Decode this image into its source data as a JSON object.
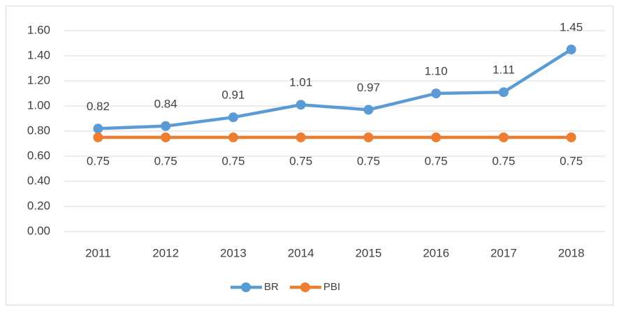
{
  "chart_data": {
    "type": "line",
    "categories": [
      "2011",
      "2012",
      "2013",
      "2014",
      "2015",
      "2016",
      "2017",
      "2018"
    ],
    "series": [
      {
        "name": "BR",
        "color": "#5b9bd5",
        "values": [
          0.82,
          0.84,
          0.91,
          1.01,
          0.97,
          1.1,
          1.11,
          1.45
        ],
        "value_labels": [
          "0.82",
          "0.84",
          "0.91",
          "1.01",
          "0.97",
          "1.10",
          "1.11",
          "1.45"
        ]
      },
      {
        "name": "PBI",
        "color": "#ed7d31",
        "values": [
          0.75,
          0.75,
          0.75,
          0.75,
          0.75,
          0.75,
          0.75,
          0.75
        ],
        "value_labels": [
          "0.75",
          "0.75",
          "0.75",
          "0.75",
          "0.75",
          "0.75",
          "0.75",
          "0.75"
        ]
      }
    ],
    "ylim": [
      0,
      1.6
    ],
    "yticks": [
      {
        "value": 0,
        "label": "0.00"
      },
      {
        "value": 0.2,
        "label": "0.20"
      },
      {
        "value": 0.4,
        "label": "0.40"
      },
      {
        "value": 0.6,
        "label": "0.60"
      },
      {
        "value": 0.8,
        "label": "0.80"
      },
      {
        "value": 1,
        "label": "1.00"
      },
      {
        "value": 1.2,
        "label": "1.20"
      },
      {
        "value": 1.4,
        "label": "1.40"
      },
      {
        "value": 1.6,
        "label": "1.60"
      }
    ],
    "grid": true,
    "legend": "bottom"
  }
}
